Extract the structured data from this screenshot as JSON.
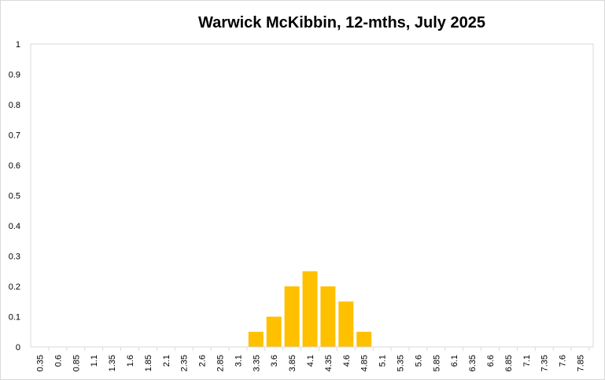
{
  "chart_data": {
    "type": "bar",
    "title": "Warwick McKibbin, 12-mths, July 2025",
    "xlabel": "",
    "ylabel": "",
    "ylim": [
      0,
      1
    ],
    "yticks": [
      "0",
      "0.1",
      "0.2",
      "0.3",
      "0.4",
      "0.5",
      "0.6",
      "0.7",
      "0.8",
      "0.9",
      "1"
    ],
    "categories": [
      "0.35",
      "0.6",
      "0.85",
      "1.1",
      "1.35",
      "1.6",
      "1.85",
      "2.1",
      "2.35",
      "2.6",
      "2.85",
      "3.1",
      "3.35",
      "3.6",
      "3.85",
      "4.1",
      "4.35",
      "4.6",
      "4.85",
      "5.1",
      "5.35",
      "5.6",
      "5.85",
      "6.1",
      "6.35",
      "6.6",
      "6.85",
      "7.1",
      "7.35",
      "7.6",
      "7.85"
    ],
    "values": [
      0,
      0,
      0,
      0,
      0,
      0,
      0,
      0,
      0,
      0,
      0,
      0,
      0.05,
      0.1,
      0.2,
      0.25,
      0.2,
      0.15,
      0.05,
      0,
      0,
      0,
      0,
      0,
      0,
      0,
      0,
      0,
      0,
      0,
      0
    ],
    "bar_color": "#ffc000",
    "grid": false,
    "legend": "none"
  }
}
